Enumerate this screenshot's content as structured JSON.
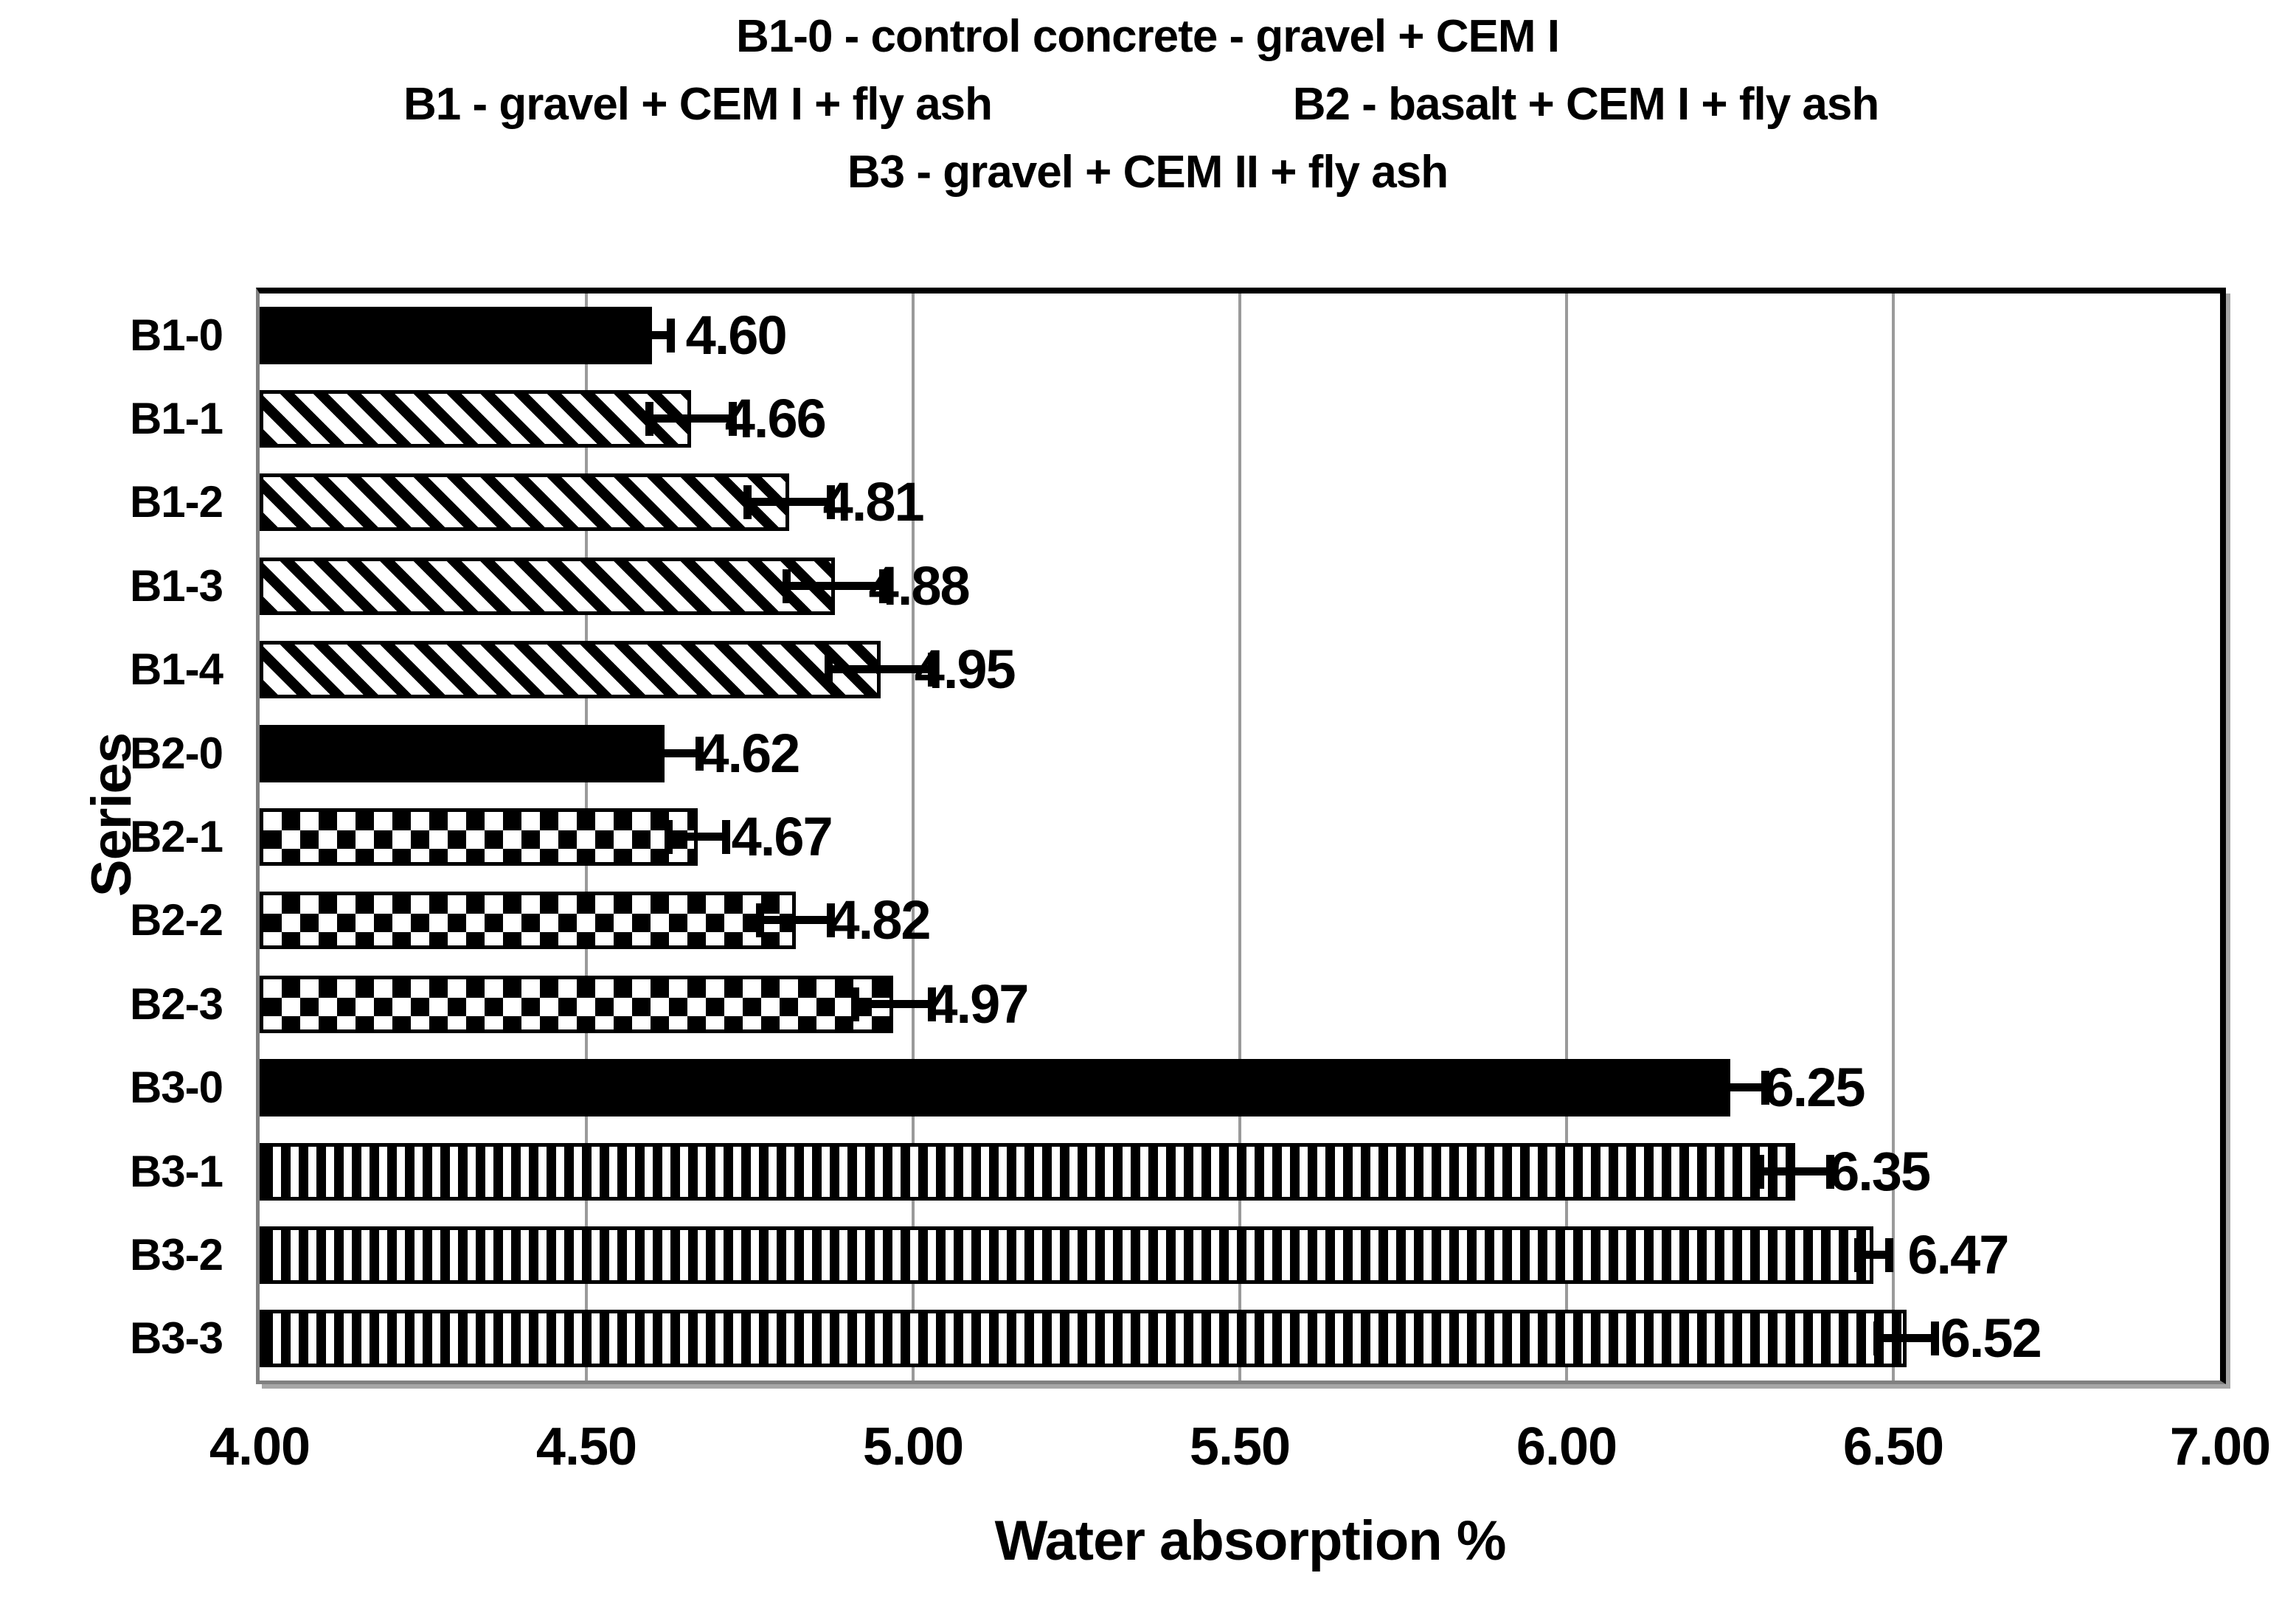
{
  "page": {
    "background": "#ffffff"
  },
  "chart_data": {
    "type": "bar",
    "orientation": "horizontal",
    "legend": {
      "line1": "B1-0 - control concrete - gravel + CEM I",
      "line2_left": "B1 - gravel + CEM I + fly ash",
      "line2_right": "B2 - basalt + CEM I + fly ash",
      "line3": "B3 - gravel + CEM II + fly ash"
    },
    "xlabel": "Water absorption %",
    "ylabel": "Series",
    "xlim": [
      4.0,
      7.0
    ],
    "xticks": [
      "4.00",
      "4.50",
      "5.00",
      "5.50",
      "6.00",
      "6.50",
      "7.00"
    ],
    "grid": true,
    "gridline_values": [
      4.5,
      5.0,
      5.5,
      6.0,
      6.5
    ],
    "categories": [
      "B1-0",
      "B1-1",
      "B1-2",
      "B1-3",
      "B1-4",
      "B2-0",
      "B2-1",
      "B2-2",
      "B2-3",
      "B3-0",
      "B3-1",
      "B3-2",
      "B3-3"
    ],
    "bars": [
      {
        "label": "B1-0",
        "value": 4.6,
        "value_label": "4.60",
        "error": 0.035,
        "pattern": "solid"
      },
      {
        "label": "B1-1",
        "value": 4.66,
        "value_label": "4.66",
        "error": 0.07,
        "pattern": "diagonal"
      },
      {
        "label": "B1-2",
        "value": 4.81,
        "value_label": "4.81",
        "error": 0.07,
        "pattern": "diagonal"
      },
      {
        "label": "B1-3",
        "value": 4.88,
        "value_label": "4.88",
        "error": 0.08,
        "pattern": "diagonal"
      },
      {
        "label": "B1-4",
        "value": 4.95,
        "value_label": "4.95",
        "error": 0.085,
        "pattern": "diagonal"
      },
      {
        "label": "B2-0",
        "value": 4.62,
        "value_label": "4.62",
        "error": 0.06,
        "pattern": "solid"
      },
      {
        "label": "B2-1",
        "value": 4.67,
        "value_label": "4.67",
        "error": 0.05,
        "pattern": "checker"
      },
      {
        "label": "B2-2",
        "value": 4.82,
        "value_label": "4.82",
        "error": 0.06,
        "pattern": "checker"
      },
      {
        "label": "B2-3",
        "value": 4.97,
        "value_label": "4.97",
        "error": 0.065,
        "pattern": "checker"
      },
      {
        "label": "B3-0",
        "value": 6.25,
        "value_label": "6.25",
        "error": 0.06,
        "pattern": "solid"
      },
      {
        "label": "B3-1",
        "value": 6.35,
        "value_label": "6.35",
        "error": 0.06,
        "pattern": "vstripe"
      },
      {
        "label": "B3-2",
        "value": 6.47,
        "value_label": "6.47",
        "error": 0.03,
        "pattern": "vstripe"
      },
      {
        "label": "B3-3",
        "value": 6.52,
        "value_label": "6.52",
        "error": 0.05,
        "pattern": "vstripe"
      }
    ],
    "colors": {
      "bar_fill": "#000000",
      "bar_border": "#000000",
      "gridline": "#9a9a9a",
      "axis_gray": "#808080",
      "frame_black": "#000000",
      "shadow": "#a6a6a6",
      "text": "#000000",
      "background": "#ffffff"
    }
  }
}
